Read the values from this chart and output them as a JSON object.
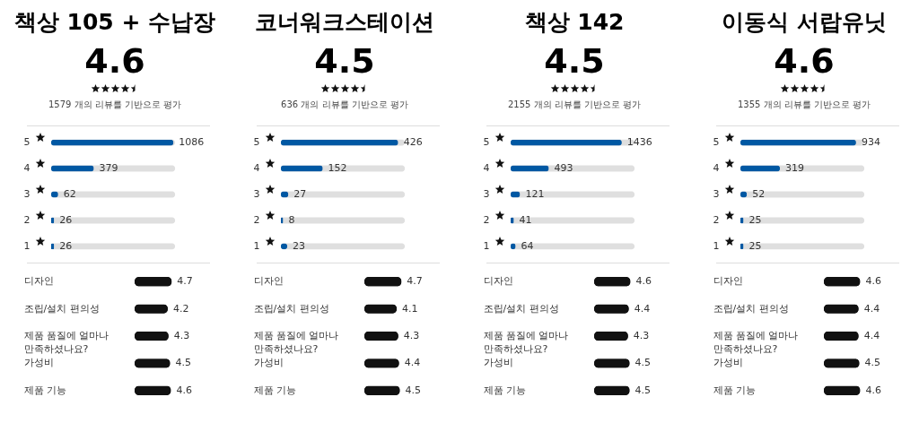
{
  "chart_data": [
    {
      "type": "bar",
      "orientation": "horizontal",
      "title": "책상 105 + 수납장",
      "subtitle": "4.6",
      "annotations": [
        "1579 개의 리뷰를 기반으로 평가"
      ],
      "categories": [
        "5",
        "4",
        "3",
        "2",
        "1"
      ],
      "values": [
        1086,
        379,
        62,
        26,
        26
      ],
      "color": "#0058a3",
      "tick_labels": "y",
      "data_labels": true
    },
    {
      "type": "bar",
      "orientation": "horizontal",
      "categories": [
        "디자인",
        "조립/설치 편의성",
        "제품 품질에 얼마나 만족하셨나요?",
        "가성비",
        "제품 기능"
      ],
      "values": [
        4.7,
        4.2,
        4.3,
        4.5,
        4.6
      ],
      "color": "#111111",
      "tick_labels": "y",
      "data_labels": true
    },
    {
      "type": "bar",
      "orientation": "horizontal",
      "title": "코너워크스테이션",
      "subtitle": "4.5",
      "annotations": [
        "636 개의 리뷰를 기반으로 평가"
      ],
      "categories": [
        "5",
        "4",
        "3",
        "2",
        "1"
      ],
      "values": [
        426,
        152,
        27,
        8,
        23
      ],
      "color": "#0058a3",
      "tick_labels": "y",
      "data_labels": true
    },
    {
      "type": "bar",
      "orientation": "horizontal",
      "categories": [
        "디자인",
        "조립/설치 편의성",
        "제품 품질에 얼마나 만족하셨나요?",
        "가성비",
        "제품 기능"
      ],
      "values": [
        4.7,
        4.1,
        4.3,
        4.4,
        4.5
      ],
      "color": "#111111",
      "tick_labels": "y",
      "data_labels": true
    },
    {
      "type": "bar",
      "orientation": "horizontal",
      "title": "책상 142",
      "subtitle": "4.5",
      "annotations": [
        "2155 개의 리뷰를 기반으로 평가"
      ],
      "categories": [
        "5",
        "4",
        "3",
        "2",
        "1"
      ],
      "values": [
        1436,
        493,
        121,
        41,
        64
      ],
      "color": "#0058a3",
      "tick_labels": "y",
      "data_labels": true
    },
    {
      "type": "bar",
      "orientation": "horizontal",
      "categories": [
        "디자인",
        "조립/설치 편의성",
        "제품 품질에 얼마나 만족하셨나요?",
        "가성비",
        "제품 기능"
      ],
      "values": [
        4.6,
        4.4,
        4.3,
        4.5,
        4.5
      ],
      "color": "#111111",
      "tick_labels": "y",
      "data_labels": true
    },
    {
      "type": "bar",
      "orientation": "horizontal",
      "title": "이동식 서랍유닛",
      "subtitle": "4.6",
      "annotations": [
        "1355 개의 리뷰를 기반으로 평가"
      ],
      "categories": [
        "5",
        "4",
        "3",
        "2",
        "1"
      ],
      "values": [
        934,
        319,
        52,
        25,
        25
      ],
      "color": "#0058a3",
      "tick_labels": "y",
      "data_labels": true
    },
    {
      "type": "bar",
      "orientation": "horizontal",
      "categories": [
        "디자인",
        "조립/설치 편의성",
        "제품 품질에 얼마나 만족하셨나요?",
        "가성비",
        "제품 기능"
      ],
      "values": [
        4.6,
        4.4,
        4.4,
        4.5,
        4.6
      ],
      "color": "#111111",
      "tick_labels": "y",
      "data_labels": true
    }
  ]
}
